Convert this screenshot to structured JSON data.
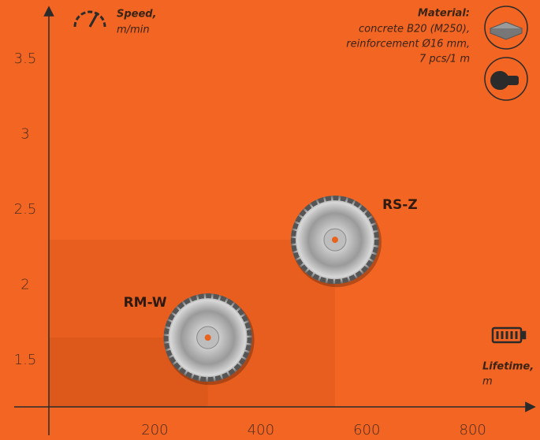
{
  "chart_data": {
    "type": "scatter",
    "y_label": {
      "title": "Speed,",
      "unit": "m/min"
    },
    "x_label": {
      "title": "Lifetime,",
      "unit": "m"
    },
    "material": {
      "title": "Material:",
      "lines": [
        "concrete B20 (M250),",
        "reinforcement Ø16 mm,",
        "7 pcs/1 m"
      ]
    },
    "labels": [
      "RM-W",
      "RS-Z"
    ],
    "x": [
      300,
      540
    ],
    "values": [
      1.65,
      2.3
    ],
    "xlim": [
      0,
      915
    ],
    "ylim": [
      1.19,
      3.83
    ],
    "xticks": [
      200,
      400,
      600,
      800
    ],
    "yticks": [
      1.5,
      2,
      2.5,
      3,
      3.5
    ],
    "background": "#f26522"
  }
}
